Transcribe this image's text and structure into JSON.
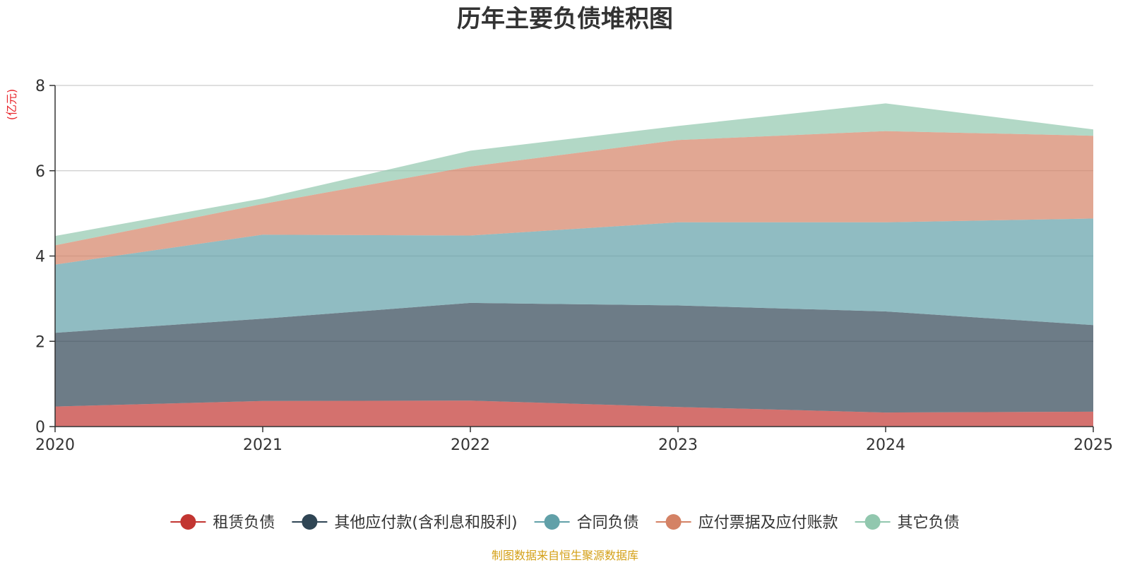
{
  "chart_data": {
    "type": "area",
    "stacked": true,
    "title": "历年主要负债堆积图",
    "unit_label": "(亿元)",
    "xlabel": "",
    "ylabel": "(亿元)",
    "ylim": [
      0,
      8
    ],
    "y_ticks": [
      0,
      2,
      4,
      6,
      8
    ],
    "categories": [
      "2020",
      "2021",
      "2022",
      "2023",
      "2024",
      "2025"
    ],
    "grid": true,
    "legend_position": "bottom",
    "series": [
      {
        "name": "租赁负债",
        "color": "#c23531",
        "values": [
          0.47,
          0.6,
          0.61,
          0.46,
          0.33,
          0.35
        ]
      },
      {
        "name": "其他应付款(含利息和股利)",
        "color": "#2f4554",
        "values": [
          1.73,
          1.93,
          2.29,
          2.38,
          2.37,
          2.03
        ]
      },
      {
        "name": "合同负债",
        "color": "#61a0a8",
        "values": [
          1.6,
          1.97,
          1.58,
          1.95,
          2.09,
          2.5
        ]
      },
      {
        "name": "应付票据及应付账款",
        "color": "#d48265",
        "values": [
          0.45,
          0.72,
          1.62,
          1.93,
          2.14,
          1.94
        ]
      },
      {
        "name": "其它负债",
        "color": "#91c7ae",
        "values": [
          0.22,
          0.13,
          0.37,
          0.33,
          0.65,
          0.15
        ]
      }
    ],
    "source": "制图数据来自恒生聚源数据库"
  }
}
